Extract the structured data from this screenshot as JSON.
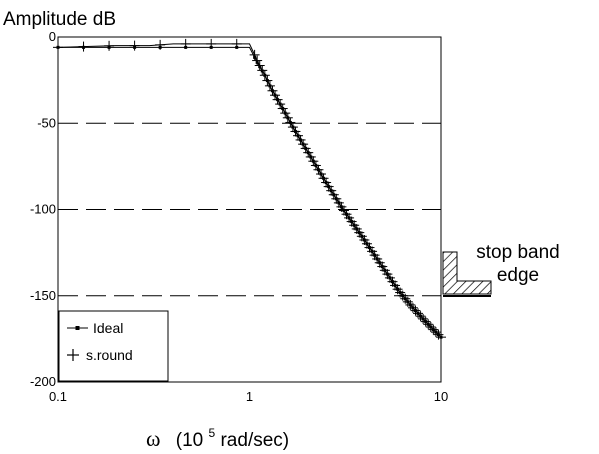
{
  "chart_data": {
    "type": "line",
    "ylabel": "Amplitude dB",
    "xlabel": {
      "symbol": "ω",
      "prefix": "(10",
      "exponent": "5",
      "suffix": " rad/sec)"
    },
    "x_scale": "log",
    "xlim": [
      0.1,
      10
    ],
    "ylim": [
      -200,
      0
    ],
    "x_ticks": [
      {
        "value": 0.1,
        "label": "0.1"
      },
      {
        "value": 1,
        "label": "1"
      },
      {
        "value": 10,
        "label": "10"
      }
    ],
    "y_ticks": [
      {
        "value": 0,
        "label": "0"
      },
      {
        "value": -50,
        "label": "-50"
      },
      {
        "value": -100,
        "label": "-100"
      },
      {
        "value": -150,
        "label": "-150"
      },
      {
        "value": -200,
        "label": "-200"
      }
    ],
    "grid": {
      "y_dashed_at": [
        -50,
        -100,
        -150
      ]
    },
    "legend_position": "bottom-left",
    "series": [
      {
        "name": "Ideal",
        "marker": "small-square",
        "x": [
          0.1,
          0.2,
          0.3,
          0.4,
          0.5,
          0.6,
          0.7,
          0.8,
          0.9,
          1.0,
          1.1,
          1.2,
          1.3,
          1.5,
          1.7,
          2.0,
          2.5,
          3.0,
          4.0,
          5.0,
          6.0,
          7.0,
          8.0,
          9.0,
          10.0
        ],
        "y": [
          -6,
          -6,
          -6,
          -6,
          -6,
          -6,
          -6,
          -6,
          -6,
          -6,
          -15,
          -22,
          -30,
          -42,
          -53,
          -66,
          -84,
          -98,
          -118,
          -134,
          -147,
          -156,
          -163,
          -169,
          -174
        ]
      },
      {
        "name": "s.round",
        "marker": "plus",
        "x": [
          0.1,
          0.2,
          0.3,
          0.4,
          0.5,
          0.6,
          0.7,
          0.8,
          0.9,
          1.0,
          1.05,
          1.1,
          1.2,
          1.3,
          1.5,
          1.7,
          2.0,
          2.5,
          3.0,
          4.0,
          5.0,
          6.0,
          7.0,
          8.0,
          9.0,
          10.0
        ],
        "y": [
          -6,
          -5,
          -5,
          -4,
          -4,
          -4,
          -4,
          -4,
          -4,
          -4,
          -9,
          -14,
          -22,
          -30,
          -42,
          -53,
          -66,
          -84,
          -98,
          -118,
          -134,
          -147,
          -156,
          -163,
          -169,
          -174
        ]
      }
    ],
    "annotation": {
      "lines": [
        "stop band",
        "edge"
      ]
    }
  }
}
